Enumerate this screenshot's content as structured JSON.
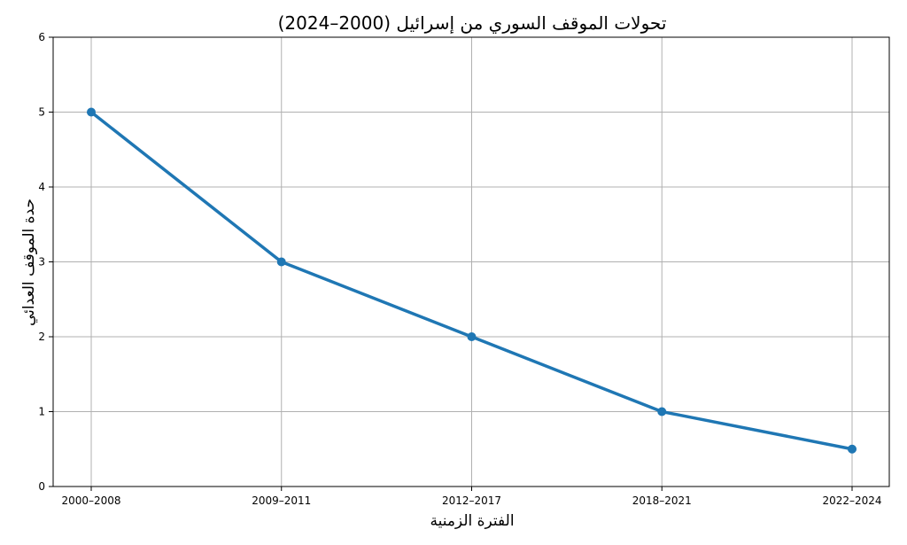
{
  "chart_data": {
    "type": "line",
    "title": "تحولات الموقف السوري من إسرائيل (2000–2024)",
    "xlabel": "الفترة الزمنية",
    "ylabel": "حدة الموقف العدائي",
    "categories": [
      "2000–2008",
      "2009–2011",
      "2012–2017",
      "2018–2021",
      "2022–2024"
    ],
    "series": [
      {
        "values": [
          5,
          3,
          2,
          1,
          0.5
        ],
        "color": "#1f77b4"
      }
    ],
    "ylim": [
      0,
      6
    ],
    "yticks": [
      "0",
      "1",
      "2",
      "3",
      "4",
      "5",
      "6"
    ],
    "grid": true,
    "legend": "none"
  }
}
